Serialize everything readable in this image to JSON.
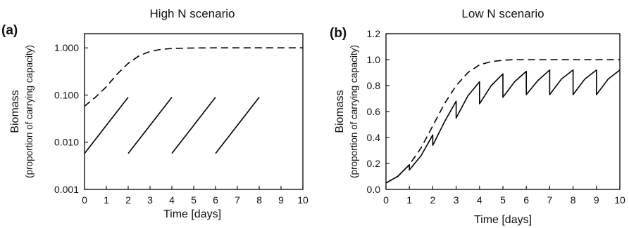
{
  "chart_data": [
    {
      "type": "line",
      "panel_label": "(a)",
      "title": "High N scenario",
      "xlabel": "Time [days]",
      "ylabel": "Biomass",
      "ylabel_sub": "(proportion of carrying capacity)",
      "xlim": [
        0,
        10
      ],
      "ylim": [
        0.001,
        2.0
      ],
      "yscale": "log",
      "grid": false,
      "legend": "none",
      "xticks": [
        0,
        1,
        2,
        3,
        4,
        5,
        6,
        7,
        8,
        9,
        10
      ],
      "yticks": [
        0.001,
        0.01,
        0.1,
        1.0
      ],
      "ytick_labels": [
        "0.001",
        "0.010",
        "0.100",
        "1.000"
      ],
      "series": [
        {
          "style": "dashed",
          "x": [
            0,
            0.5,
            1,
            1.5,
            2,
            2.5,
            3,
            3.5,
            4,
            5,
            6,
            7,
            8,
            9,
            10
          ],
          "y": [
            0.058,
            0.09,
            0.15,
            0.28,
            0.47,
            0.68,
            0.84,
            0.93,
            0.97,
            0.995,
            1.0,
            1.0,
            1.0,
            1.0,
            1.0
          ]
        },
        {
          "style": "solid",
          "segments": [
            {
              "x": [
                0,
                2
              ],
              "y": [
                0.0058,
                0.09
              ]
            },
            {
              "x": [
                2,
                4
              ],
              "y": [
                0.0058,
                0.09
              ]
            },
            {
              "x": [
                4,
                6
              ],
              "y": [
                0.0058,
                0.09
              ]
            },
            {
              "x": [
                6,
                8
              ],
              "y": [
                0.0058,
                0.09
              ]
            }
          ]
        }
      ]
    },
    {
      "type": "line",
      "panel_label": "(b)",
      "title": "Low N scenario",
      "xlabel": "Time [days]",
      "ylabel": "Biomass",
      "ylabel_sub": "(proportion of carrying capacity)",
      "xlim": [
        0,
        10
      ],
      "ylim": [
        0,
        1.2
      ],
      "yscale": "linear",
      "grid": false,
      "legend": "none",
      "xticks": [
        0,
        1,
        2,
        3,
        4,
        5,
        6,
        7,
        8,
        9,
        10
      ],
      "yticks": [
        0,
        0.2,
        0.4,
        0.6,
        0.8,
        1.0,
        1.2
      ],
      "ytick_labels": [
        "0.0",
        "0.2",
        "0.4",
        "0.6",
        "0.8",
        "1.0",
        "1.2"
      ],
      "series": [
        {
          "style": "dashed",
          "x": [
            0,
            0.5,
            1,
            1.5,
            2,
            2.5,
            3,
            3.5,
            4,
            4.5,
            5,
            5.5,
            6,
            7,
            8,
            9,
            10
          ],
          "y": [
            0.05,
            0.1,
            0.19,
            0.32,
            0.49,
            0.66,
            0.8,
            0.9,
            0.96,
            0.985,
            0.995,
            1.0,
            1.0,
            1.0,
            1.0,
            1.0,
            1.0
          ]
        },
        {
          "style": "solid",
          "x": [
            0,
            0.5,
            1,
            1,
            1.5,
            2,
            2,
            2.5,
            3,
            3,
            3.5,
            4,
            4,
            4.5,
            5,
            5,
            5.5,
            6,
            6,
            6.5,
            7,
            7,
            7.5,
            8,
            8,
            8.5,
            9,
            9,
            9.5,
            10
          ],
          "y": [
            0.05,
            0.1,
            0.19,
            0.15,
            0.26,
            0.42,
            0.34,
            0.52,
            0.68,
            0.55,
            0.72,
            0.83,
            0.66,
            0.8,
            0.89,
            0.71,
            0.83,
            0.91,
            0.73,
            0.84,
            0.92,
            0.73,
            0.85,
            0.92,
            0.73,
            0.85,
            0.92,
            0.73,
            0.85,
            0.92
          ]
        }
      ]
    }
  ]
}
